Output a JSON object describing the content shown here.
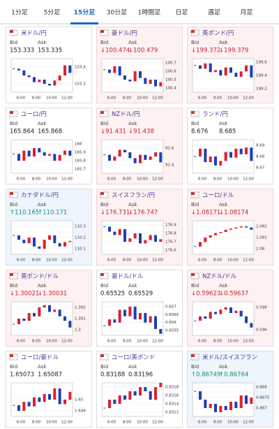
{
  "tabs": [
    "1分足",
    "5分足",
    "15分足",
    "30分足",
    "1時間足",
    "日足",
    "週足",
    "月足"
  ],
  "active_tab": 2,
  "labels": {
    "bid": "Bid",
    "ask": "Ask"
  },
  "xticks": [
    "6:00",
    "8:00",
    "10:00",
    "12:00"
  ],
  "cards": [
    {
      "title": "米ドル/円",
      "trend": "flat",
      "bid": "153.333",
      "ask": "153.335",
      "chart": {
        "ylim": [
          153.1,
          153.5
        ],
        "yticks": [
          153.4,
          153.2
        ],
        "values": [
          153.38,
          153.36,
          153.3,
          153.28,
          153.22,
          153.25,
          153.2,
          153.18,
          153.24,
          153.3,
          153.42,
          153.33
        ]
      }
    },
    {
      "title": "豪ドル/円",
      "trend": "down",
      "bid": "↓100.474",
      "ask": "↓100.479",
      "chart": {
        "ylim": [
          100.35,
          100.75
        ],
        "yticks": [
          100.7,
          100.6,
          100.5,
          100.4
        ],
        "values": [
          100.62,
          100.58,
          100.66,
          100.55,
          100.5,
          100.48,
          100.6,
          100.52,
          100.45,
          100.5,
          100.42,
          100.47
        ]
      }
    },
    {
      "title": "英ポンド/円",
      "trend": "down",
      "bid": "↓199.372",
      "ask": "↓199.379",
      "chart": {
        "ylim": [
          199.15,
          199.65
        ],
        "yticks": [
          199.6,
          199.4,
          199.2
        ],
        "values": [
          199.55,
          199.5,
          199.58,
          199.45,
          199.48,
          199.4,
          199.52,
          199.44,
          199.38,
          199.46,
          199.55,
          199.37
        ]
      }
    },
    {
      "title": "ユーロ/円",
      "trend": "flat",
      "bid": "165.864",
      "ask": "165.868",
      "chart": {
        "ylim": [
          165.65,
          166.05
        ],
        "yticks": [
          166,
          165.9,
          165.8,
          165.7
        ],
        "values": [
          165.88,
          165.8,
          165.92,
          165.85,
          165.95,
          165.9,
          165.86,
          165.88,
          165.8,
          165.87,
          165.92,
          165.86
        ]
      }
    },
    {
      "title": "NZドル/円",
      "trend": "down",
      "bid": "↓91.431",
      "ask": "↓91.438",
      "chart": {
        "ylim": [
          91.3,
          91.7
        ],
        "yticks": [
          91.6,
          91.4
        ],
        "values": [
          91.52,
          91.45,
          91.5,
          91.58,
          91.55,
          91.48,
          91.42,
          91.52,
          91.46,
          91.5,
          91.55,
          91.43
        ]
      }
    },
    {
      "title": "ランド/円",
      "trend": "flat",
      "bid": "8.676",
      "ask": "8.685",
      "chart": {
        "ylim": [
          8.665,
          8.695
        ],
        "yticks": [
          8.69,
          8.68,
          8.67
        ],
        "values": [
          8.68,
          8.687,
          8.675,
          8.68,
          8.672,
          8.676,
          8.684,
          8.679,
          8.687,
          8.682,
          8.688,
          8.676
        ]
      }
    },
    {
      "title": "カナダドル/円",
      "trend": "up",
      "bid": "↑110.165",
      "ask": "↑110.171",
      "chart": {
        "ylim": [
          110.05,
          110.35
        ],
        "yticks": [
          110.3,
          110.2,
          110.1
        ],
        "values": [
          110.22,
          110.18,
          110.15,
          110.2,
          110.12,
          110.1,
          110.18,
          110.22,
          110.15,
          110.12,
          110.16,
          110.17
        ]
      }
    },
    {
      "title": "スイスフラン/円",
      "trend": "down",
      "bid": "↓176.731",
      "ask": "↓176.747",
      "chart": {
        "ylim": [
          176.55,
          176.95
        ],
        "yticks": [
          176.9,
          176.8,
          176.7,
          176.6
        ],
        "values": [
          176.88,
          176.82,
          176.78,
          176.85,
          176.7,
          176.74,
          176.8,
          176.68,
          176.72,
          176.78,
          176.7,
          176.73
        ]
      }
    },
    {
      "title": "ユーロ/ドル",
      "trend": "down",
      "bid": "↓1.08171",
      "ask": "↓1.08174",
      "chart": {
        "ylim": [
          1.0795,
          1.0825
        ],
        "yticks": [
          1.082,
          1.081,
          1.08
        ],
        "values": [
          1.0802,
          1.0806,
          1.081,
          1.0812,
          1.0814,
          1.0815,
          1.0817,
          1.0818,
          1.0819,
          1.082,
          1.0819,
          1.0817
        ]
      }
    },
    {
      "title": "英ポンド/ドル",
      "trend": "down",
      "bid": "↓1.30021",
      "ask": "↓1.30031",
      "chart": {
        "ylim": [
          1.2995,
          1.3025
        ],
        "yticks": [
          1.302,
          1.301,
          1.3
        ],
        "values": [
          1.3005,
          1.301,
          1.3008,
          1.3015,
          1.3012,
          1.302,
          1.3022,
          1.3016,
          1.3018,
          1.3012,
          1.3008,
          1.3002
        ]
      }
    },
    {
      "title": "豪ドル/ドル",
      "trend": "flat",
      "bid": "0.65525",
      "ask": "0.65529",
      "chart": {
        "ylim": [
          0.6552,
          0.6573
        ],
        "yticks": [
          0.657,
          0.6565,
          0.656,
          0.6555
        ],
        "values": [
          0.6558,
          0.6562,
          0.656,
          0.6568,
          0.6564,
          0.657,
          0.6562,
          0.6566,
          0.656,
          0.6564,
          0.6556,
          0.6553
        ]
      }
    },
    {
      "title": "NZドル/ドル",
      "trend": "down",
      "bid": "↓0.59623",
      "ask": "↓0.59637",
      "chart": {
        "ylim": [
          0.5955,
          0.5985
        ],
        "yticks": [
          0.598,
          0.596
        ],
        "values": [
          0.5968,
          0.5972,
          0.597,
          0.5976,
          0.5974,
          0.5978,
          0.598,
          0.5975,
          0.5977,
          0.5972,
          0.5966,
          0.5962
        ]
      }
    },
    {
      "title": "ユーロ/豪ドル",
      "trend": "flat",
      "bid": "1.65073",
      "ask": "1.65087",
      "chart": {
        "ylim": [
          1.6485,
          1.6515
        ],
        "yticks": [
          1.65,
          1.649
        ],
        "values": [
          1.6495,
          1.649,
          1.6498,
          1.6494,
          1.6502,
          1.6498,
          1.6505,
          1.65,
          1.651,
          1.6496,
          1.65,
          1.6507
        ]
      }
    },
    {
      "title": "ユーロ/英ポンド",
      "trend": "flat",
      "bid": "0.83188",
      "ask": "0.83196",
      "chart": {
        "ylim": [
          0.8311,
          0.8319
        ],
        "yticks": [
          0.8318,
          0.8316,
          0.8314,
          0.8312
        ],
        "values": [
          0.8313,
          0.8315,
          0.8314,
          0.8316,
          0.8315,
          0.8317,
          0.8316,
          0.8318,
          0.8317,
          0.8315,
          0.8318,
          0.8319
        ]
      }
    },
    {
      "title": "米ドル/スイスフラン",
      "trend": "up",
      "bid": "↑0.86749",
      "ask": "↑0.86764",
      "chart": {
        "ylim": [
          0.8666,
          0.8682
        ],
        "yticks": [
          0.868,
          0.8675,
          0.867
        ],
        "values": [
          0.8678,
          0.8674,
          0.867,
          0.8672,
          0.8668,
          0.8671,
          0.8669,
          0.8673,
          0.867,
          0.8676,
          0.8672,
          0.8675
        ]
      }
    }
  ]
}
